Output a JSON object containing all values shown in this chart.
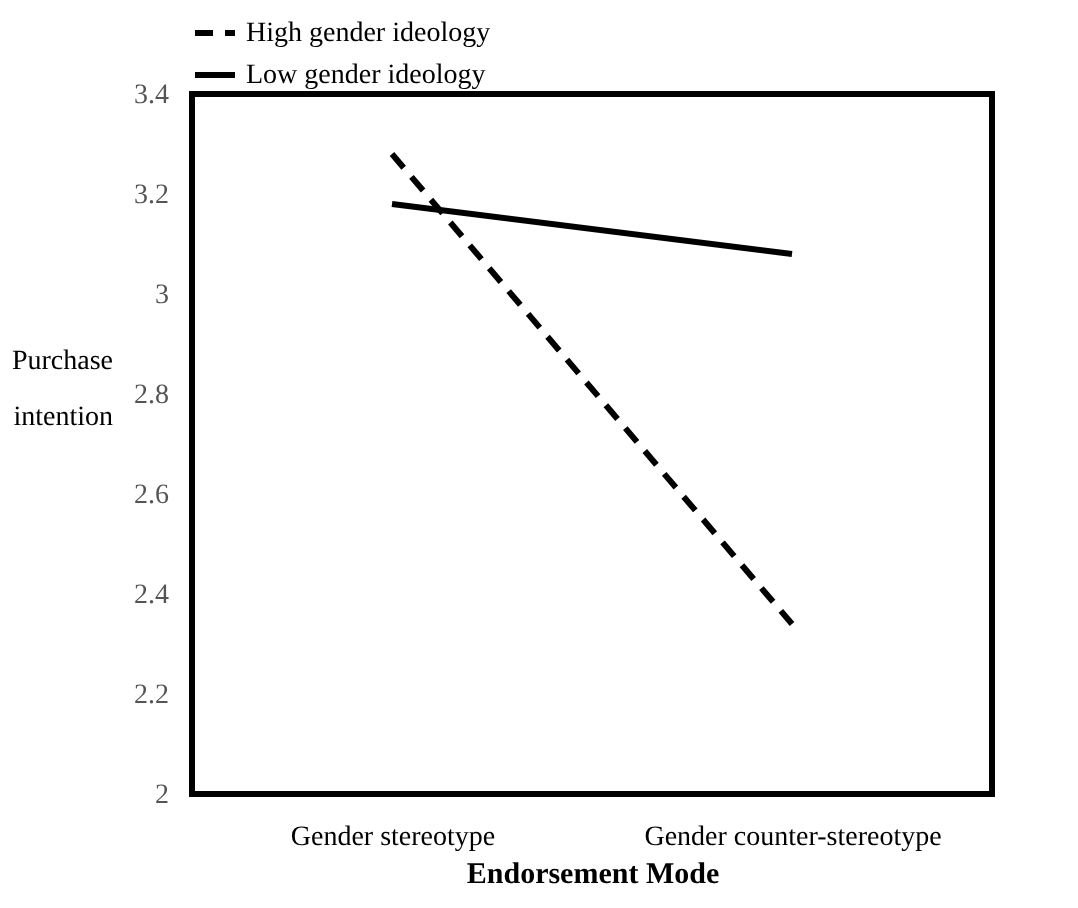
{
  "chart_data": {
    "type": "line",
    "xlabel": "Endorsement Mode",
    "ylabel": "Purchase intention",
    "categories": [
      "Gender stereotype",
      "Gender counter-stereotype"
    ],
    "series": [
      {
        "name": "High gender ideology",
        "color": "#000000",
        "line_style": "dashed",
        "values": [
          3.28,
          2.34
        ]
      },
      {
        "name": "Low gender ideology",
        "color": "#000000",
        "line_style": "solid",
        "values": [
          3.18,
          3.08
        ]
      }
    ],
    "ylim": [
      2,
      3.4
    ],
    "yticks": [
      2,
      2.2,
      2.4,
      2.6,
      2.8,
      3,
      3.2,
      3.4
    ],
    "grid": false,
    "legend": "top",
    "marker": "none"
  }
}
